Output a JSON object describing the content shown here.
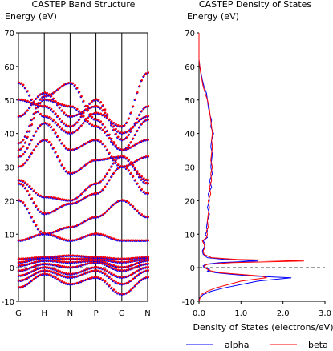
{
  "chart_data": [
    {
      "type": "scatter",
      "title": "CASTEP Band Structure",
      "ylabel": "Energy (eV)",
      "ylim": [
        -10,
        70
      ],
      "yticks": [
        -10,
        0,
        10,
        20,
        30,
        40,
        50,
        60,
        70
      ],
      "kpoints": [
        "G",
        "H",
        "N",
        "P",
        "G",
        "N"
      ],
      "fermi_level": 0,
      "series": [
        {
          "name": "alpha",
          "color": "#0000ff"
        },
        {
          "name": "beta",
          "color": "#ff0000"
        }
      ],
      "bands": [
        [
          [
            0,
            -6
          ],
          [
            1,
            -2
          ],
          [
            2,
            -5
          ],
          [
            3,
            -3
          ],
          [
            4,
            -8
          ],
          [
            5,
            -3
          ]
        ],
        [
          [
            0,
            -4
          ],
          [
            1,
            -1
          ],
          [
            2,
            -3
          ],
          [
            3,
            -1
          ],
          [
            4,
            -5
          ],
          [
            5,
            -1
          ]
        ],
        [
          [
            0,
            -2.5
          ],
          [
            1,
            0
          ],
          [
            2,
            -2
          ],
          [
            3,
            0
          ],
          [
            4,
            -3
          ],
          [
            5,
            0
          ]
        ],
        [
          [
            0,
            -1
          ],
          [
            1,
            1
          ],
          [
            2,
            0
          ],
          [
            3,
            1.5
          ],
          [
            4,
            -1
          ],
          [
            5,
            1
          ]
        ],
        [
          [
            0,
            0.5
          ],
          [
            1,
            2
          ],
          [
            2,
            1.5
          ],
          [
            3,
            2
          ],
          [
            4,
            0
          ],
          [
            5,
            2
          ]
        ],
        [
          [
            0,
            1.5
          ],
          [
            1,
            2.8
          ],
          [
            2,
            2.5
          ],
          [
            3,
            2.5
          ],
          [
            4,
            1.5
          ],
          [
            5,
            2.5
          ]
        ],
        [
          [
            0,
            2.5
          ],
          [
            1,
            3
          ],
          [
            2,
            3.5
          ],
          [
            3,
            3
          ],
          [
            4,
            2.5
          ],
          [
            5,
            3
          ]
        ],
        [
          [
            0,
            8
          ],
          [
            1,
            10
          ],
          [
            2,
            8
          ],
          [
            3,
            10
          ],
          [
            4,
            8
          ],
          [
            5,
            8
          ]
        ],
        [
          [
            0,
            20
          ],
          [
            1,
            10
          ],
          [
            2,
            12
          ],
          [
            3,
            15
          ],
          [
            4,
            20
          ],
          [
            5,
            15
          ]
        ],
        [
          [
            0,
            25
          ],
          [
            1,
            16
          ],
          [
            2,
            19
          ],
          [
            3,
            22
          ],
          [
            4,
            30
          ],
          [
            5,
            22
          ]
        ],
        [
          [
            0,
            26
          ],
          [
            1,
            21
          ],
          [
            2,
            20
          ],
          [
            3,
            25
          ],
          [
            4,
            33
          ],
          [
            5,
            25
          ]
        ],
        [
          [
            0,
            30
          ],
          [
            1,
            38
          ],
          [
            2,
            28
          ],
          [
            3,
            32
          ],
          [
            4,
            33
          ],
          [
            5,
            26
          ]
        ],
        [
          [
            0,
            33
          ],
          [
            1,
            43
          ],
          [
            2,
            35
          ],
          [
            3,
            38
          ],
          [
            4,
            30
          ],
          [
            5,
            33
          ]
        ],
        [
          [
            0,
            35
          ],
          [
            1,
            50
          ],
          [
            2,
            48
          ],
          [
            3,
            42
          ],
          [
            4,
            35
          ],
          [
            5,
            38
          ]
        ],
        [
          [
            0,
            37
          ],
          [
            1,
            51
          ],
          [
            2,
            55
          ],
          [
            3,
            44
          ],
          [
            4,
            35
          ],
          [
            5,
            44
          ]
        ],
        [
          [
            0,
            45
          ],
          [
            1,
            52
          ],
          [
            2,
            45
          ],
          [
            3,
            48
          ],
          [
            4,
            40
          ],
          [
            5,
            45
          ]
        ],
        [
          [
            0,
            50
          ],
          [
            1,
            48
          ],
          [
            2,
            42
          ],
          [
            3,
            50
          ],
          [
            4,
            38
          ],
          [
            5,
            48
          ]
        ],
        [
          [
            0,
            55
          ],
          [
            1,
            45
          ],
          [
            2,
            40
          ],
          [
            3,
            46
          ],
          [
            4,
            42
          ],
          [
            5,
            58
          ]
        ]
      ]
    },
    {
      "type": "line",
      "title": "CASTEP Density of States",
      "ylabel": "Energy (eV)",
      "xlabel": "Density of States (electrons/eV)",
      "xlim": [
        0,
        3
      ],
      "xticks": [
        "0.0",
        "1.0",
        "2.0",
        "3.0"
      ],
      "ylim": [
        -10,
        70
      ],
      "yticks": [
        -10,
        0,
        10,
        20,
        30,
        40,
        50,
        60,
        70
      ],
      "fermi_level": 0,
      "legend": "bottom",
      "series": [
        {
          "name": "alpha",
          "color": "#0000ff",
          "points": [
            [
              0,
              -10
            ],
            [
              0.02,
              -9
            ],
            [
              0.1,
              -8
            ],
            [
              0.3,
              -7
            ],
            [
              0.6,
              -6
            ],
            [
              1.0,
              -5
            ],
            [
              1.4,
              -4
            ],
            [
              1.8,
              -3.5
            ],
            [
              2.2,
              -3
            ],
            [
              1.3,
              -2.5
            ],
            [
              0.8,
              -2
            ],
            [
              0.4,
              -1.5
            ],
            [
              0.2,
              -1
            ],
            [
              0.25,
              -0.5
            ],
            [
              0.12,
              0
            ],
            [
              0.1,
              0.5
            ],
            [
              0.15,
              1
            ],
            [
              0.5,
              1.5
            ],
            [
              1.4,
              2
            ],
            [
              0.6,
              2.5
            ],
            [
              0.2,
              3
            ],
            [
              0.1,
              4
            ],
            [
              0.08,
              5
            ],
            [
              0.12,
              6
            ],
            [
              0.15,
              7
            ],
            [
              0.1,
              8
            ],
            [
              0.2,
              9
            ],
            [
              0.15,
              10
            ],
            [
              0.2,
              11
            ],
            [
              0.18,
              12
            ],
            [
              0.2,
              14
            ],
            [
              0.25,
              16
            ],
            [
              0.2,
              18
            ],
            [
              0.25,
              20
            ],
            [
              0.22,
              22
            ],
            [
              0.3,
              24
            ],
            [
              0.25,
              26
            ],
            [
              0.32,
              28
            ],
            [
              0.28,
              30
            ],
            [
              0.3,
              32
            ],
            [
              0.32,
              34
            ],
            [
              0.28,
              36
            ],
            [
              0.3,
              38
            ],
            [
              0.35,
              40
            ],
            [
              0.28,
              42
            ],
            [
              0.3,
              44
            ],
            [
              0.25,
              46
            ],
            [
              0.22,
              48
            ],
            [
              0.2,
              50
            ],
            [
              0.18,
              52
            ],
            [
              0.12,
              54
            ],
            [
              0.08,
              56
            ],
            [
              0.05,
              58
            ],
            [
              0.02,
              60
            ],
            [
              0,
              62
            ],
            [
              0,
              70
            ]
          ]
        },
        {
          "name": "beta",
          "color": "#ff0000",
          "points": [
            [
              0,
              -10
            ],
            [
              0.05,
              -8
            ],
            [
              0.2,
              -7
            ],
            [
              0.4,
              -6
            ],
            [
              0.7,
              -5
            ],
            [
              1.0,
              -4
            ],
            [
              1.3,
              -3.5
            ],
            [
              1.6,
              -3
            ],
            [
              1.5,
              -2.5
            ],
            [
              1.0,
              -2
            ],
            [
              0.5,
              -1.5
            ],
            [
              0.3,
              -1
            ],
            [
              0.2,
              -0.5
            ],
            [
              0.15,
              0
            ],
            [
              0.12,
              0.5
            ],
            [
              0.2,
              1
            ],
            [
              0.8,
              1.5
            ],
            [
              2.5,
              2
            ],
            [
              0.9,
              2.5
            ],
            [
              0.3,
              3
            ],
            [
              0.12,
              4
            ],
            [
              0.1,
              5
            ],
            [
              0.14,
              6
            ],
            [
              0.12,
              7
            ],
            [
              0.08,
              8
            ],
            [
              0.18,
              9
            ],
            [
              0.2,
              10
            ],
            [
              0.18,
              11
            ],
            [
              0.22,
              12
            ],
            [
              0.2,
              14
            ],
            [
              0.22,
              16
            ],
            [
              0.25,
              18
            ],
            [
              0.22,
              20
            ],
            [
              0.28,
              22
            ],
            [
              0.25,
              24
            ],
            [
              0.3,
              26
            ],
            [
              0.28,
              28
            ],
            [
              0.32,
              30
            ],
            [
              0.28,
              32
            ],
            [
              0.3,
              34
            ],
            [
              0.32,
              36
            ],
            [
              0.3,
              38
            ],
            [
              0.32,
              40
            ],
            [
              0.3,
              42
            ],
            [
              0.28,
              44
            ],
            [
              0.26,
              46
            ],
            [
              0.24,
              48
            ],
            [
              0.2,
              50
            ],
            [
              0.15,
              52
            ],
            [
              0.1,
              54
            ],
            [
              0.07,
              56
            ],
            [
              0.04,
              58
            ],
            [
              0.02,
              60
            ],
            [
              0,
              62
            ],
            [
              0,
              70
            ]
          ]
        }
      ]
    }
  ]
}
